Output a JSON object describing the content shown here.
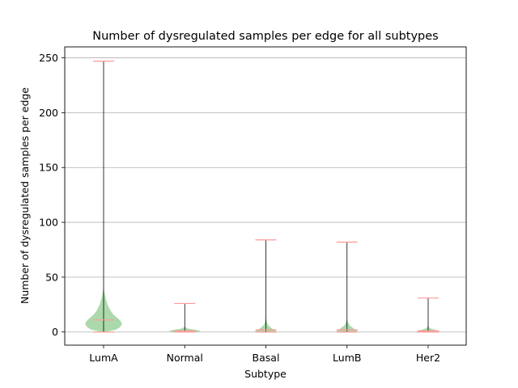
{
  "chart_data": {
    "type": "violin",
    "title": "Number of dysregulated samples per edge for all subtypes",
    "xlabel": "Subtype",
    "ylabel": "Number of dysregulated samples per edge",
    "categories": [
      "LumA",
      "Normal",
      "Basal",
      "LumB",
      "Her2"
    ],
    "ylim": [
      -12,
      260
    ],
    "yticks": [
      0,
      50,
      100,
      150,
      200,
      250
    ],
    "grid": "horizontal",
    "violin_color": "#8fcc8f",
    "extrema_line_color": "#ff9999",
    "stem_color": "#000000",
    "series": [
      {
        "category": "LumA",
        "min": 0,
        "max": 247,
        "median": 11,
        "density": [
          [
            0,
            0.05
          ],
          [
            2,
            0.62
          ],
          [
            4,
            0.82
          ],
          [
            7,
            0.95
          ],
          [
            10,
            0.88
          ],
          [
            13,
            0.7
          ],
          [
            16,
            0.5
          ],
          [
            20,
            0.34
          ],
          [
            25,
            0.2
          ],
          [
            30,
            0.12
          ],
          [
            35,
            0.05
          ],
          [
            40,
            0.01
          ]
        ]
      },
      {
        "category": "Normal",
        "min": 0,
        "max": 26,
        "median": 1,
        "density": [
          [
            0,
            0.5
          ],
          [
            0.5,
            0.78
          ],
          [
            1,
            0.8
          ],
          [
            2,
            0.55
          ],
          [
            3,
            0.2
          ],
          [
            4,
            0.05
          ],
          [
            5,
            0.01
          ]
        ]
      },
      {
        "category": "Basal",
        "min": 0,
        "max": 84,
        "median": 2,
        "density": [
          [
            0,
            0.42
          ],
          [
            1,
            0.55
          ],
          [
            2,
            0.42
          ],
          [
            4,
            0.25
          ],
          [
            6,
            0.13
          ],
          [
            8,
            0.07
          ],
          [
            10,
            0.04
          ],
          [
            12,
            0.02
          ],
          [
            14,
            0.005
          ]
        ]
      },
      {
        "category": "LumB",
        "min": 0,
        "max": 82,
        "median": 2,
        "density": [
          [
            0,
            0.45
          ],
          [
            1,
            0.55
          ],
          [
            2,
            0.45
          ],
          [
            4,
            0.28
          ],
          [
            6,
            0.14
          ],
          [
            8,
            0.07
          ],
          [
            10,
            0.03
          ],
          [
            12,
            0.005
          ]
        ]
      },
      {
        "category": "Her2",
        "min": 0,
        "max": 31,
        "median": 1,
        "density": [
          [
            0,
            0.55
          ],
          [
            0.5,
            0.6
          ],
          [
            1,
            0.55
          ],
          [
            2,
            0.35
          ],
          [
            3,
            0.15
          ],
          [
            4,
            0.06
          ],
          [
            5,
            0.02
          ],
          [
            6,
            0.005
          ]
        ]
      }
    ]
  }
}
